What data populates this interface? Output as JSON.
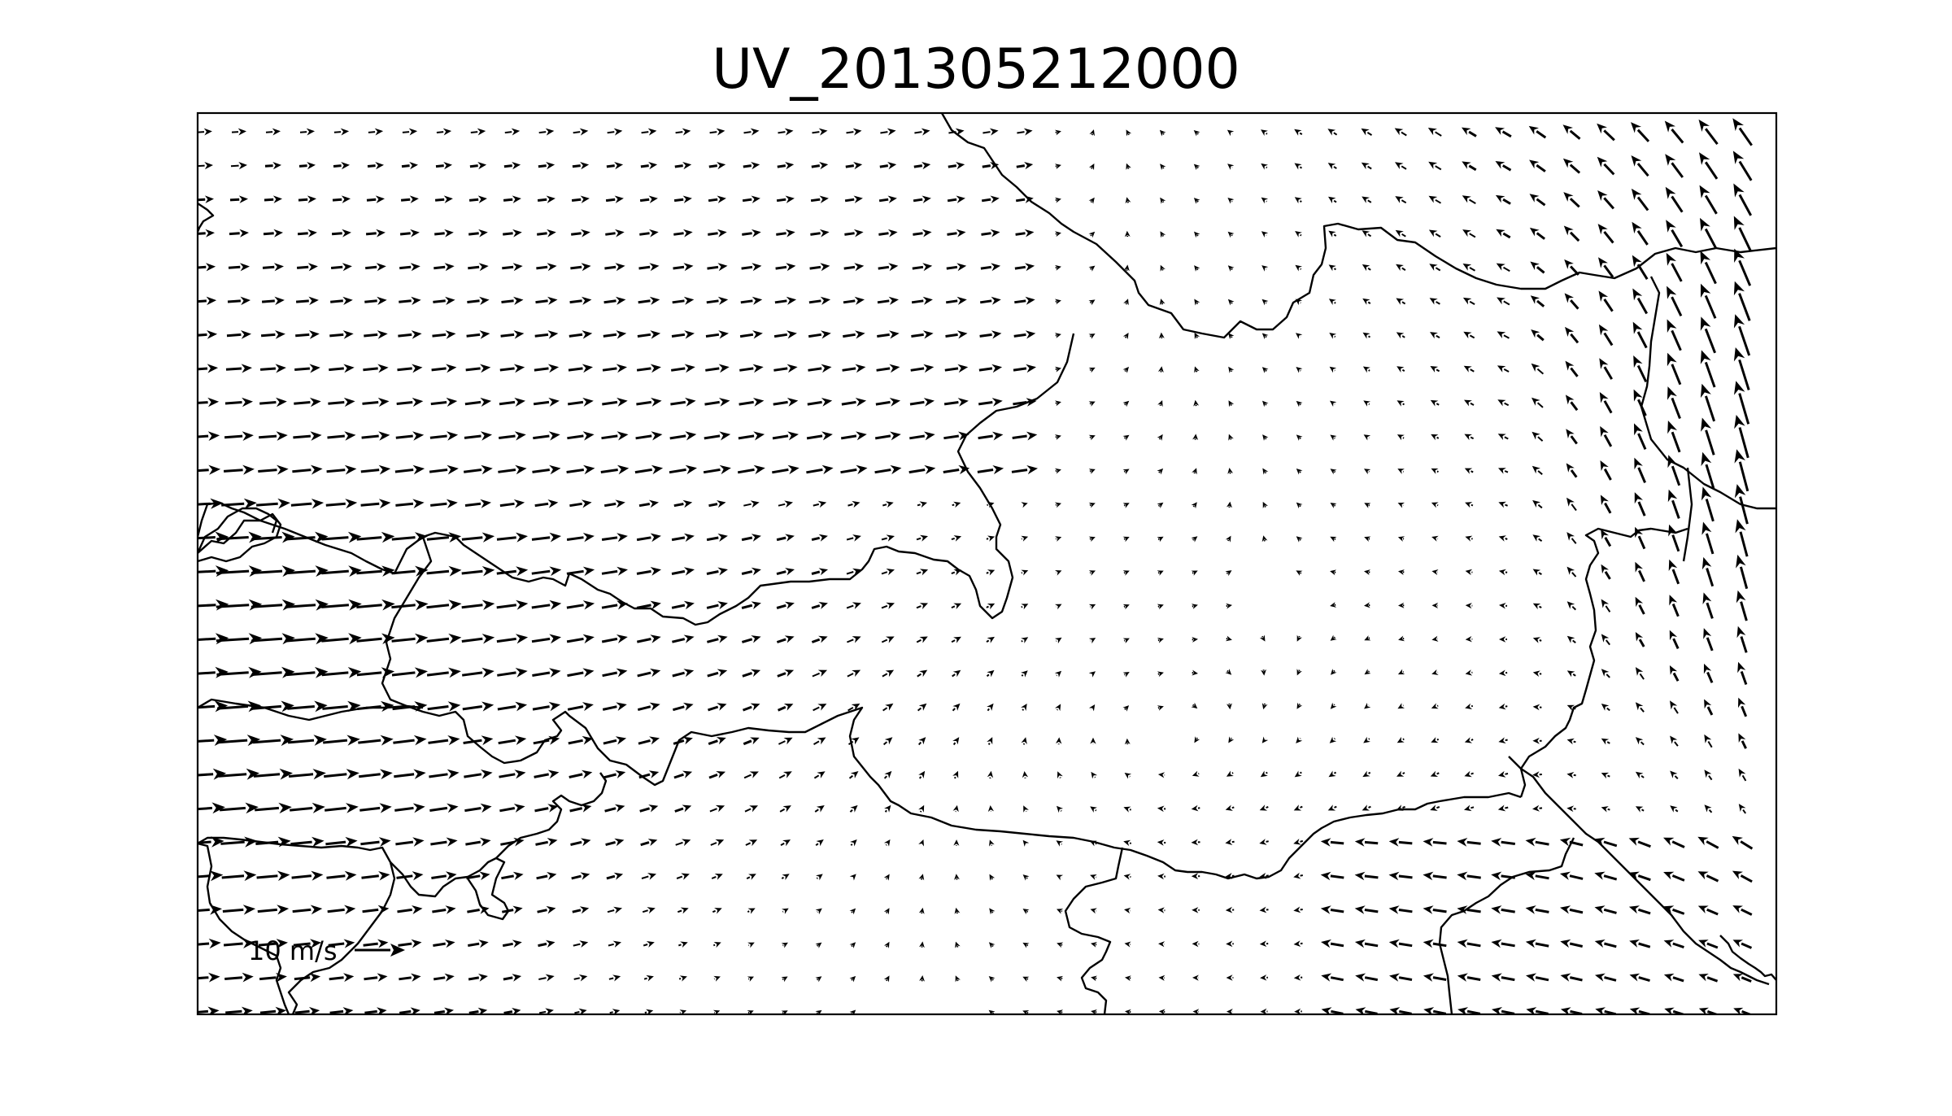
{
  "title": "UV_201305212000",
  "quiver_key": {
    "label": "10 m/s",
    "magnitude": 10,
    "unit": "m/s"
  },
  "colors": {
    "ink": "#000000",
    "background": "#ffffff"
  },
  "wind_field": {
    "description_free": true,
    "grid_columns": 46,
    "grid_rows": 27,
    "max_speed_ms": 14
  }
}
